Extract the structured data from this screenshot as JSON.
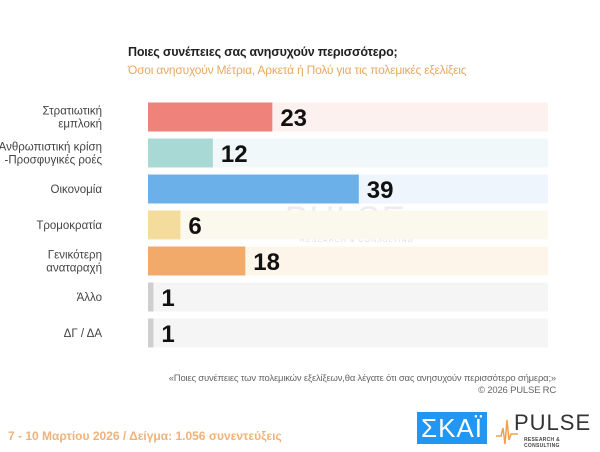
{
  "header": {
    "title": "Ποιες συνέπειες σας ανησυχούν περισσότερο;",
    "subtitle": "Όσοι ανησυχούν Μέτρια, Αρκετά ή Πολύ για τις πολεμικές εξελίξεις"
  },
  "chart_data": {
    "type": "bar",
    "orientation": "horizontal",
    "categories": [
      [
        "Στρατιωτική",
        "εμπλοκή"
      ],
      [
        "Ανθρωπιστική κρίση",
        "-Προσφυγικές ροές"
      ],
      [
        "Οικονομία"
      ],
      [
        "Τρομοκρατία"
      ],
      [
        "Γενικότερη",
        "αναταραχή"
      ],
      [
        "Άλλο"
      ],
      [
        "ΔΓ / ΔΑ"
      ]
    ],
    "values": [
      23,
      12,
      39,
      6,
      18,
      1,
      1
    ],
    "colors": [
      "#ef827b",
      "#a9d9d5",
      "#6cb0ea",
      "#f3dc9c",
      "#f1aa6a",
      "#cfcfcf",
      "#cfcfcf"
    ],
    "track_colors": [
      "#fdf1f0",
      "#f1f8f9",
      "#eef5fc",
      "#fbf8ee",
      "#fdf4ea",
      "#f5f5f5",
      "#f5f5f5"
    ],
    "xlim": [
      0,
      74
    ],
    "grid": false
  },
  "watermark": {
    "word": "PULSE",
    "tag": "RESEARCH & CONSULTING"
  },
  "note": {
    "question": "«Ποιες συνέπειες των πολεμικών εξελίξεων,θα λέγατε ότι σας ανησυχούν περισσότερο σήμερα;»",
    "copyright": "©  2026  PULSE RC"
  },
  "footer": {
    "text": "7 - 10  Μαρτίου 2026  /  Δείγμα:  1.056 συνεντεύξεις"
  },
  "logos": {
    "skai": "ΣΚΑΪ",
    "pulse": "PULSE",
    "pulse_tag": "RESEARCH & CONSULTING"
  }
}
